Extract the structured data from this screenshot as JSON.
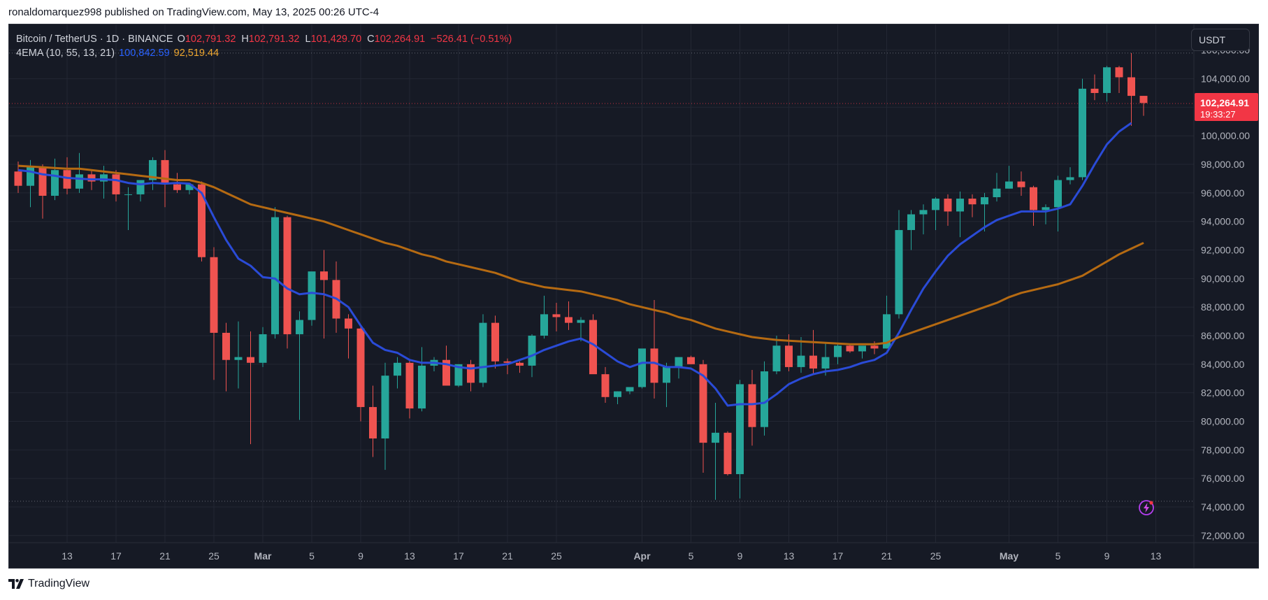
{
  "header": {
    "published": "ronaldomarquez998 published on TradingView.com, May 13, 2025 00:26 UTC-4"
  },
  "legend": {
    "symbol": "Bitcoin / TetherUS · 1D · BINANCE",
    "o_label": "O",
    "o_value": "102,791.32",
    "h_label": "H",
    "h_value": "102,791.32",
    "l_label": "L",
    "l_value": "101,429.70",
    "c_label": "C",
    "c_value": "102,264.91",
    "change": "−526.41 (−0.51%)",
    "indicator": "4EMA (10, 55, 13, 21)",
    "ema_fast_value": "100,842.59",
    "ema_slow_value": "92,519.44"
  },
  "currency": "USDT",
  "price_label": {
    "price": "102,264.91",
    "countdown": "19:33:27"
  },
  "footer": {
    "brand": "TradingView"
  },
  "colors": {
    "up": "#26a69a",
    "down": "#ef5350",
    "ema_fast": "#2a4bd7",
    "ema_slow": "#b56a12",
    "background": "#161a25",
    "grid": "#232733"
  },
  "chart_data": {
    "type": "candlestick",
    "title": "Bitcoin / TetherUS · 1D · BINANCE",
    "yaxis_ticks": [
      "72,000.00",
      "74,000.00",
      "76,000.00",
      "78,000.00",
      "80,000.00",
      "82,000.00",
      "84,000.00",
      "86,000.00",
      "88,000.00",
      "90,000.00",
      "92,000.00",
      "94,000.00",
      "96,000.00",
      "98,000.00",
      "100,000.00",
      "102,000.00",
      "104,000.00",
      "106,000.00"
    ],
    "ylim": [
      71500,
      107800
    ],
    "xaxis_ticks": [
      {
        "i": 4,
        "label": "13"
      },
      {
        "i": 8,
        "label": "17"
      },
      {
        "i": 12,
        "label": "21"
      },
      {
        "i": 16,
        "label": "25"
      },
      {
        "i": 20,
        "label": "Mar"
      },
      {
        "i": 24,
        "label": "5"
      },
      {
        "i": 28,
        "label": "9"
      },
      {
        "i": 32,
        "label": "13"
      },
      {
        "i": 36,
        "label": "17"
      },
      {
        "i": 40,
        "label": "21"
      },
      {
        "i": 44,
        "label": "25"
      },
      {
        "i": 51,
        "label": "Apr"
      },
      {
        "i": 55,
        "label": "5"
      },
      {
        "i": 59,
        "label": "9"
      },
      {
        "i": 63,
        "label": "13"
      },
      {
        "i": 67,
        "label": "17"
      },
      {
        "i": 71,
        "label": "21"
      },
      {
        "i": 75,
        "label": "25"
      },
      {
        "i": 81,
        "label": "May"
      },
      {
        "i": 85,
        "label": "5"
      },
      {
        "i": 89,
        "label": "9"
      },
      {
        "i": 93,
        "label": "13"
      }
    ],
    "reference_lines": [
      105800,
      102265,
      74400
    ],
    "candles": [
      [
        97500,
        98200,
        96000,
        96500
      ],
      [
        96500,
        98300,
        95000,
        97800
      ],
      [
        97800,
        98000,
        94200,
        95800
      ],
      [
        95800,
        98400,
        95500,
        97600
      ],
      [
        97600,
        98500,
        95900,
        96300
      ],
      [
        96300,
        98800,
        96000,
        97300
      ],
      [
        97300,
        97600,
        96200,
        96800
      ],
      [
        96800,
        97900,
        95600,
        97300
      ],
      [
        97300,
        97600,
        95400,
        95900
      ],
      [
        95900,
        96400,
        93400,
        95900
      ],
      [
        95900,
        96800,
        95400,
        96900
      ],
      [
        96900,
        98500,
        96200,
        98300
      ],
      [
        98300,
        99000,
        95000,
        96600
      ],
      [
        96600,
        97400,
        96000,
        96200
      ],
      [
        96200,
        96700,
        95900,
        96600
      ],
      [
        96600,
        96800,
        91200,
        91500
      ],
      [
        91500,
        92200,
        82900,
        86200
      ],
      [
        86200,
        86900,
        82100,
        84300
      ],
      [
        84300,
        87000,
        82300,
        84500
      ],
      [
        84500,
        86300,
        78400,
        84100
      ],
      [
        84100,
        86600,
        83800,
        86100
      ],
      [
        86100,
        95000,
        85800,
        94300
      ],
      [
        94300,
        94400,
        85100,
        86100
      ],
      [
        86100,
        87700,
        80100,
        87100
      ],
      [
        87100,
        90400,
        86700,
        90500
      ],
      [
        90500,
        92000,
        85800,
        89900
      ],
      [
        89900,
        91200,
        86200,
        87200
      ],
      [
        87200,
        87500,
        84400,
        86500
      ],
      [
        86500,
        86700,
        80000,
        81000
      ],
      [
        81000,
        82500,
        77500,
        78800
      ],
      [
        78800,
        84100,
        76600,
        83200
      ],
      [
        83200,
        84500,
        82300,
        84100
      ],
      [
        84100,
        84300,
        80200,
        80900
      ],
      [
        80900,
        85200,
        80700,
        83900
      ],
      [
        83900,
        84500,
        83500,
        84300
      ],
      [
        84300,
        85300,
        82600,
        82500
      ],
      [
        82500,
        84000,
        82400,
        84000
      ],
      [
        84000,
        84300,
        82100,
        82700
      ],
      [
        82700,
        87500,
        82400,
        86900
      ],
      [
        86900,
        87400,
        83700,
        84200
      ],
      [
        84200,
        84400,
        83300,
        84100
      ],
      [
        84100,
        84200,
        83400,
        83900
      ],
      [
        83900,
        86100,
        83100,
        86000
      ],
      [
        86000,
        88800,
        85800,
        87500
      ],
      [
        87500,
        88300,
        86300,
        87300
      ],
      [
        87300,
        88400,
        86400,
        86900
      ],
      [
        86900,
        87300,
        85600,
        87100
      ],
      [
        87100,
        87500,
        83400,
        83300
      ],
      [
        83300,
        83800,
        81300,
        81700
      ],
      [
        81700,
        82100,
        81200,
        82100
      ],
      [
        82100,
        82200,
        81900,
        82400
      ],
      [
        82400,
        85000,
        82300,
        85100
      ],
      [
        85100,
        88500,
        81600,
        82700
      ],
      [
        82700,
        84100,
        81000,
        83800
      ],
      [
        83800,
        84300,
        83000,
        84500
      ],
      [
        84500,
        84600,
        84000,
        84000
      ],
      [
        84000,
        84300,
        76400,
        78500
      ],
      [
        78500,
        81300,
        74500,
        79200
      ],
      [
        79200,
        79300,
        76200,
        76300
      ],
      [
        76300,
        82900,
        74600,
        82600
      ],
      [
        82600,
        83600,
        78300,
        79600
      ],
      [
        79600,
        84200,
        79000,
        83500
      ],
      [
        83500,
        86000,
        83300,
        85300
      ],
      [
        85300,
        86100,
        83500,
        83800
      ],
      [
        83800,
        85900,
        83400,
        84600
      ],
      [
        84600,
        86400,
        83300,
        83700
      ],
      [
        83700,
        85500,
        83200,
        84500
      ],
      [
        84500,
        85500,
        84000,
        85300
      ],
      [
        85300,
        85400,
        84800,
        84900
      ],
      [
        84900,
        85100,
        84400,
        85300
      ],
      [
        85300,
        85600,
        84700,
        85100
      ],
      [
        85100,
        88800,
        85100,
        87500
      ],
      [
        87500,
        94800,
        87200,
        93400
      ],
      [
        93400,
        94800,
        92000,
        94500
      ],
      [
        94500,
        95200,
        93100,
        94800
      ],
      [
        94800,
        95700,
        93400,
        95600
      ],
      [
        95600,
        95900,
        93700,
        94700
      ],
      [
        94700,
        96100,
        92900,
        95600
      ],
      [
        95600,
        95900,
        94300,
        95200
      ],
      [
        95200,
        96000,
        93300,
        95700
      ],
      [
        95700,
        97400,
        95400,
        96300
      ],
      [
        96300,
        97900,
        96300,
        96800
      ],
      [
        96800,
        97500,
        95800,
        96400
      ],
      [
        96400,
        96500,
        93700,
        94800
      ],
      [
        94800,
        95200,
        93800,
        95000
      ],
      [
        95000,
        97200,
        93300,
        96900
      ],
      [
        96900,
        97800,
        96600,
        97100
      ],
      [
        97100,
        104000,
        96900,
        103300
      ],
      [
        103300,
        104300,
        102500,
        103000
      ],
      [
        103000,
        104900,
        102400,
        104800
      ],
      [
        104800,
        104900,
        103000,
        104100
      ],
      [
        104100,
        105800,
        100700,
        102800
      ],
      [
        102800,
        102800,
        101400,
        102300
      ]
    ],
    "series": [
      {
        "name": "EMA 10",
        "values": [
          97600,
          97500,
          97300,
          97200,
          97050,
          97000,
          96950,
          96950,
          96900,
          96700,
          96600,
          96700,
          96650,
          96700,
          96650,
          96000,
          94300,
          92700,
          91400,
          90900,
          90100,
          90000,
          89300,
          88900,
          89000,
          88900,
          88600,
          88000,
          86700,
          85500,
          85000,
          84800,
          84300,
          84100,
          84100,
          84000,
          83800,
          83700,
          83800,
          83900,
          84000,
          84300,
          84600,
          85000,
          85300,
          85600,
          85800,
          85400,
          84800,
          84200,
          83800,
          84100,
          84100,
          83800,
          83800,
          83700,
          83200,
          82300,
          81100,
          81200,
          81200,
          81300,
          81900,
          82600,
          83000,
          83300,
          83500,
          83600,
          83800,
          84100,
          84300,
          84800,
          86200,
          87800,
          89300,
          90500,
          91600,
          92400,
          93000,
          93600,
          94100,
          94400,
          94700,
          94700,
          94700,
          94900,
          95200,
          96500,
          98000,
          99400,
          100300,
          100900
        ]
      },
      {
        "name": "EMA 55",
        "values": [
          97900,
          97850,
          97800,
          97750,
          97700,
          97700,
          97600,
          97500,
          97400,
          97300,
          97200,
          97100,
          97000,
          96900,
          96900,
          96700,
          96400,
          96000,
          95600,
          95200,
          95000,
          94800,
          94600,
          94400,
          94200,
          94000,
          93700,
          93400,
          93100,
          92800,
          92500,
          92300,
          92000,
          91700,
          91500,
          91200,
          91000,
          90800,
          90600,
          90400,
          90100,
          89800,
          89600,
          89400,
          89300,
          89200,
          89100,
          88900,
          88700,
          88500,
          88200,
          88000,
          87800,
          87600,
          87300,
          87100,
          86800,
          86500,
          86300,
          86100,
          85900,
          85800,
          85700,
          85650,
          85600,
          85550,
          85500,
          85450,
          85400,
          85400,
          85400,
          85500,
          85900,
          86200,
          86500,
          86800,
          87100,
          87400,
          87700,
          88000,
          88300,
          88700,
          89000,
          89200,
          89400,
          89600,
          89900,
          90200,
          90700,
          91200,
          91700,
          92100,
          92500
        ]
      }
    ]
  }
}
